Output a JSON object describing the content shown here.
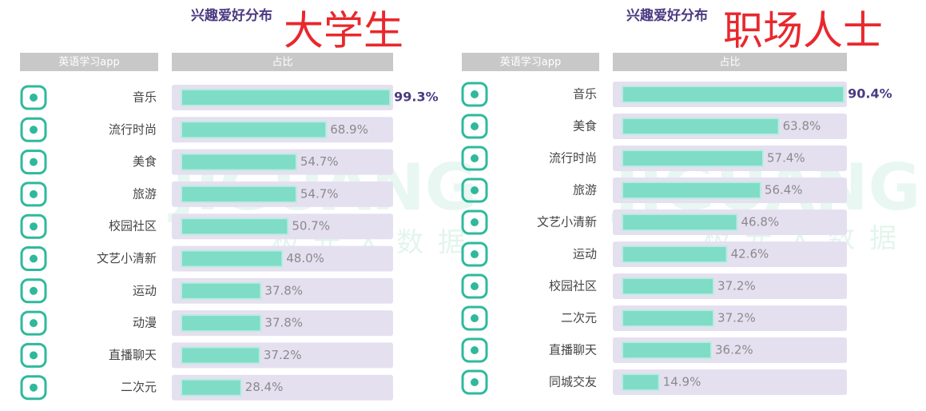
{
  "chart_data": [
    {
      "type": "bar",
      "title": "兴趣爱好分布",
      "group": "大学生",
      "header_left": "英语学习app",
      "header_right": "占比",
      "categories": [
        "音乐",
        "流行时尚",
        "美食",
        "旅游",
        "校园社区",
        "文艺小清新",
        "运动",
        "动漫",
        "直播聊天",
        "二次元"
      ],
      "values": [
        99.3,
        68.9,
        54.7,
        54.7,
        50.7,
        48.0,
        37.8,
        37.8,
        37.2,
        28.4
      ],
      "value_labels": [
        "99.3%",
        "68.9%",
        "54.7%",
        "54.7%",
        "50.7%",
        "48.0%",
        "37.8%",
        "37.8%",
        "37.2%",
        "28.4%"
      ],
      "color": "#7fdcc6",
      "xlim": [
        0,
        100
      ]
    },
    {
      "type": "bar",
      "title": "兴趣爱好分布",
      "group": "职场人士",
      "header_left": "英语学习app",
      "header_right": "占比",
      "categories": [
        "音乐",
        "美食",
        "流行时尚",
        "旅游",
        "文艺小清新",
        "运动",
        "校园社区",
        "二次元",
        "直播聊天",
        "同城交友"
      ],
      "values": [
        90.4,
        63.8,
        57.4,
        56.4,
        46.8,
        42.6,
        37.2,
        37.2,
        36.2,
        14.9
      ],
      "value_labels": [
        "90.4%",
        "63.8%",
        "57.4%",
        "56.4%",
        "46.8%",
        "42.6%",
        "37.2%",
        "37.2%",
        "36.2%",
        "14.9%"
      ],
      "color": "#7fdcc6",
      "xlim": [
        0,
        91
      ]
    }
  ],
  "watermark": {
    "brand": "JIGUANG",
    "name": "极光大数据"
  }
}
